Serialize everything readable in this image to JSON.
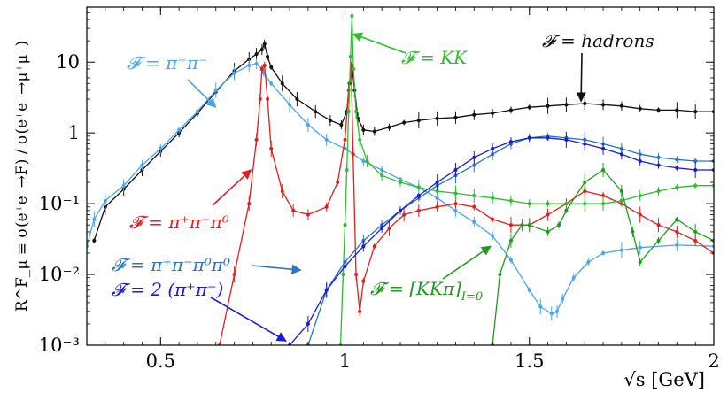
{
  "chart_data": {
    "type": "line",
    "xlabel": "√s [GeV]",
    "ylabel": "R^F_μ ≡ σ(e⁺e⁻→F) / σ(e⁺e⁻→μ⁺μ⁻)",
    "yscale": "log",
    "xlim": [
      0.3,
      2.0
    ],
    "ylim": [
      0.001,
      60
    ],
    "x_ticks": [
      0.5,
      1,
      1.5,
      2
    ],
    "x_tick_labels": [
      "0.5",
      "1",
      "1.5",
      "2"
    ],
    "y_ticks": [
      0.001,
      0.01,
      0.1,
      1,
      10
    ],
    "y_tick_labels": [
      "10⁻³",
      "10⁻²",
      "10⁻¹",
      "1",
      "10"
    ],
    "series": [
      {
        "name": "F = hadrons",
        "label": "𝓕 = hadrons",
        "color": "#111111",
        "x": [
          0.32,
          0.35,
          0.4,
          0.45,
          0.5,
          0.55,
          0.6,
          0.65,
          0.7,
          0.74,
          0.76,
          0.775,
          0.782,
          0.79,
          0.8,
          0.83,
          0.87,
          0.92,
          0.96,
          0.99,
          1.005,
          1.012,
          1.019,
          1.026,
          1.035,
          1.05,
          1.08,
          1.12,
          1.16,
          1.2,
          1.25,
          1.3,
          1.35,
          1.4,
          1.45,
          1.5,
          1.55,
          1.6,
          1.65,
          1.7,
          1.75,
          1.8,
          1.85,
          1.9,
          1.95,
          2.0
        ],
        "y": [
          0.03,
          0.09,
          0.16,
          0.3,
          0.55,
          1.0,
          1.9,
          3.8,
          7.5,
          11,
          13,
          15,
          18,
          12,
          8.5,
          5,
          3,
          2,
          1.5,
          1.3,
          2,
          5,
          9,
          4,
          1.6,
          1.1,
          1.05,
          1.2,
          1.4,
          1.5,
          1.6,
          1.65,
          1.8,
          1.9,
          2.1,
          2.3,
          2.4,
          2.5,
          2.6,
          2.5,
          2.4,
          2.2,
          2.1,
          2.1,
          2.0,
          2.0
        ]
      },
      {
        "name": "F = π+π-",
        "label": "𝓕 = π⁺π⁻",
        "color": "#4aa5ec",
        "x": [
          0.3,
          0.32,
          0.35,
          0.4,
          0.45,
          0.5,
          0.55,
          0.6,
          0.65,
          0.7,
          0.74,
          0.76,
          0.775,
          0.78,
          0.8,
          0.85,
          0.9,
          0.95,
          1.0,
          1.05,
          1.1,
          1.15,
          1.2,
          1.25,
          1.3,
          1.35,
          1.4,
          1.45,
          1.5,
          1.53,
          1.56,
          1.575,
          1.59,
          1.62,
          1.66,
          1.7,
          1.75,
          1.8,
          1.9,
          2.0
        ],
        "y": [
          0.025,
          0.06,
          0.11,
          0.18,
          0.35,
          0.6,
          1.1,
          2.0,
          4.0,
          7.0,
          9.0,
          9.5,
          8.0,
          7.0,
          5.0,
          2.5,
          1.3,
          0.8,
          0.6,
          0.4,
          0.3,
          0.22,
          0.17,
          0.12,
          0.08,
          0.055,
          0.035,
          0.016,
          0.006,
          0.0035,
          0.0028,
          0.003,
          0.0045,
          0.009,
          0.015,
          0.02,
          0.022,
          0.024,
          0.026,
          0.025
        ]
      },
      {
        "name": "F = π+π-π0",
        "label": "𝓕 = π⁺π⁻π⁰",
        "color": "#e11d1d",
        "x": [
          0.66,
          0.7,
          0.74,
          0.76,
          0.77,
          0.775,
          0.782,
          0.79,
          0.8,
          0.83,
          0.86,
          0.9,
          0.95,
          0.98,
          1.0,
          1.01,
          1.017,
          1.022,
          1.03,
          1.04,
          1.05,
          1.08,
          1.12,
          1.16,
          1.2,
          1.25,
          1.3,
          1.35,
          1.4,
          1.45,
          1.5,
          1.55,
          1.6,
          1.65,
          1.7,
          1.75,
          1.8,
          1.85,
          1.9,
          1.95,
          2.0
        ],
        "y": [
          0.001,
          0.01,
          0.1,
          0.8,
          3.0,
          8.0,
          9.0,
          3.0,
          0.6,
          0.15,
          0.08,
          0.07,
          0.09,
          0.2,
          0.8,
          4.0,
          8.0,
          0.5,
          0.01,
          0.003,
          0.008,
          0.025,
          0.045,
          0.07,
          0.08,
          0.09,
          0.1,
          0.09,
          0.06,
          0.05,
          0.05,
          0.07,
          0.1,
          0.15,
          0.13,
          0.1,
          0.07,
          0.05,
          0.04,
          0.03,
          0.02
        ]
      },
      {
        "name": "F = KK",
        "label": "𝓕 = KK",
        "color": "#2cbf2c",
        "x": [
          0.988,
          0.995,
          1.0,
          1.005,
          1.01,
          1.015,
          1.019,
          1.023,
          1.03,
          1.04,
          1.06,
          1.1,
          1.15,
          1.2,
          1.25,
          1.3,
          1.35,
          1.4,
          1.45,
          1.5,
          1.55,
          1.6,
          1.65,
          1.7,
          1.75,
          1.8,
          1.85,
          1.9,
          1.95,
          2.0
        ],
        "y": [
          0.001,
          0.01,
          0.05,
          0.3,
          2.0,
          12,
          45,
          8,
          2.0,
          0.8,
          0.4,
          0.25,
          0.2,
          0.17,
          0.15,
          0.14,
          0.13,
          0.12,
          0.11,
          0.1,
          0.1,
          0.1,
          0.1,
          0.1,
          0.11,
          0.13,
          0.15,
          0.17,
          0.18,
          0.18
        ]
      },
      {
        "name": "F = π+π-π0π0",
        "label": "𝓕 = π⁺π⁻π⁰π⁰",
        "color": "#2a73c6",
        "x": [
          0.9,
          0.95,
          1.0,
          1.05,
          1.1,
          1.15,
          1.2,
          1.25,
          1.3,
          1.35,
          1.4,
          1.45,
          1.5,
          1.55,
          1.6,
          1.65,
          1.7,
          1.75,
          1.8,
          1.85,
          1.9,
          1.95,
          2.0
        ],
        "y": [
          0.001,
          0.006,
          0.015,
          0.03,
          0.05,
          0.08,
          0.12,
          0.18,
          0.25,
          0.35,
          0.5,
          0.7,
          0.85,
          0.9,
          0.85,
          0.8,
          0.7,
          0.6,
          0.5,
          0.45,
          0.42,
          0.4,
          0.4
        ]
      },
      {
        "name": "F = 2(π+π-)",
        "label": "𝓕 = 2 (π⁺π⁻)",
        "color": "#1a1ad4",
        "x": [
          0.85,
          0.9,
          0.95,
          1.0,
          1.05,
          1.1,
          1.15,
          1.2,
          1.25,
          1.3,
          1.35,
          1.4,
          1.45,
          1.5,
          1.55,
          1.6,
          1.65,
          1.7,
          1.75,
          1.8,
          1.85,
          1.9,
          1.95,
          2.0
        ],
        "y": [
          0.001,
          0.002,
          0.006,
          0.013,
          0.025,
          0.045,
          0.08,
          0.13,
          0.2,
          0.3,
          0.45,
          0.6,
          0.75,
          0.85,
          0.85,
          0.8,
          0.7,
          0.6,
          0.5,
          0.4,
          0.35,
          0.32,
          0.3,
          0.3
        ]
      },
      {
        "name": "F = [KKπ]I=0",
        "label": "𝓕 = [KKπ]",
        "label_subscript": "I=0",
        "color": "#1e9a1e",
        "x": [
          1.4,
          1.42,
          1.45,
          1.48,
          1.5,
          1.55,
          1.58,
          1.6,
          1.65,
          1.7,
          1.75,
          1.78,
          1.8,
          1.85,
          1.9,
          1.95,
          2.0
        ],
        "y": [
          0.001,
          0.01,
          0.03,
          0.05,
          0.05,
          0.04,
          0.05,
          0.08,
          0.2,
          0.3,
          0.15,
          0.04,
          0.015,
          0.03,
          0.06,
          0.04,
          0.03
        ]
      }
    ],
    "annotations": [
      {
        "text": "𝓕 = hadrons",
        "series": "F = hadrons",
        "arrow_to": [
          1.64,
          2.8
        ]
      },
      {
        "text": "𝓕 = π⁺π⁻",
        "series": "F = π+π-",
        "arrow_to": [
          0.65,
          2.3
        ]
      },
      {
        "text": "𝓕 = KK",
        "series": "F = KK",
        "arrow_to": [
          1.022,
          25
        ]
      },
      {
        "text": "𝓕 = π⁺π⁻π⁰",
        "series": "F = π+π-π0",
        "arrow_to": [
          0.745,
          0.3
        ]
      },
      {
        "text": "𝓕 = π⁺π⁻π⁰π⁰",
        "series": "F = π+π-π0π0",
        "arrow_to": [
          0.88,
          0.0115
        ]
      },
      {
        "text": "𝓕 = 2 (π⁺π⁻)",
        "series": "F = 2(π+π-)",
        "arrow_to": [
          0.84,
          0.00115
        ]
      },
      {
        "text": "𝓕 = [KKπ]",
        "subscript": "I=0",
        "series": "F = [KKπ]I=0",
        "arrow_to": [
          1.395,
          0.025
        ]
      }
    ]
  }
}
